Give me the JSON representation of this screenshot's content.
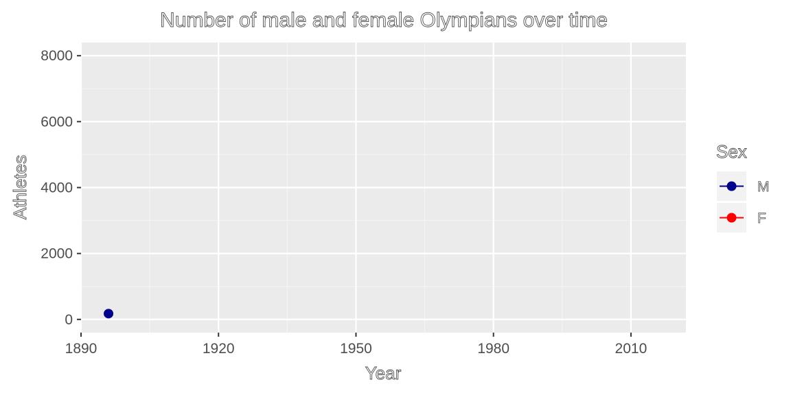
{
  "chart_data": {
    "type": "scatter",
    "title": "Number of male and female Olympians over time",
    "xlabel": "Year",
    "ylabel": "Athletes",
    "xlim": [
      1890,
      2022
    ],
    "ylim": [
      -400,
      8400
    ],
    "x_ticks": [
      1890,
      1920,
      1950,
      1980,
      2010
    ],
    "y_ticks": [
      0,
      2000,
      4000,
      6000,
      8000
    ],
    "grid": true,
    "legend": {
      "title": "Sex",
      "placement": "right",
      "entries": [
        {
          "label": "M",
          "color": "#00008b"
        },
        {
          "label": "F",
          "color": "#ff0000"
        }
      ]
    },
    "series": [
      {
        "name": "M",
        "color": "#00008b",
        "points": [
          {
            "x": 1896,
            "y": 176
          }
        ]
      },
      {
        "name": "F",
        "color": "#ff0000",
        "points": []
      }
    ]
  },
  "colors": {
    "panel_background": "#ebebeb",
    "grid_major": "#ffffff",
    "grid_minor": "#f4f4f4",
    "tick_color": "#333333",
    "legend_key_background": "#f2f2f2"
  }
}
